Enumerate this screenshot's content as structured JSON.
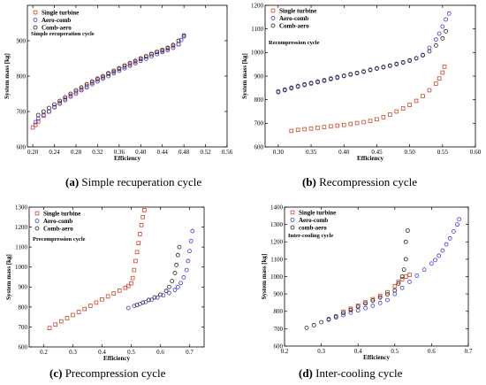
{
  "figure": {
    "captions": [
      {
        "letter": "(a)",
        "text": " Simple recuperation cycle"
      },
      {
        "letter": "(b)",
        "text": " Recompression cycle"
      },
      {
        "letter": "(c)",
        "text": " Precompression cycle"
      },
      {
        "letter": "(d)",
        "text": " Inter-cooling cycle"
      }
    ]
  },
  "series_styles": {
    "Single turbine": {
      "color": "#d0442c",
      "marker": "square"
    },
    "Aero-comb": {
      "color": "#3a3ad6",
      "marker": "circle"
    },
    "Comb-aero": {
      "color": "#222222",
      "marker": "circle"
    },
    "comb-aero": {
      "color": "#222222",
      "marker": "circle"
    }
  },
  "chart_data": [
    {
      "type": "scatter",
      "annotation": "Simple recuperation cycle",
      "xlabel": "Efficiency",
      "ylabel": "System mass [kg]",
      "xlim": [
        0.19,
        0.56
      ],
      "ylim": [
        600,
        1000
      ],
      "xticks": [
        0.2,
        0.24,
        0.28,
        0.32,
        0.36,
        0.4,
        0.44,
        0.48,
        0.52,
        0.56
      ],
      "xtick_labels": [
        "0.20",
        "0.24",
        "0.28",
        "0.32",
        "0.36",
        "0.40",
        "0.44",
        "0.48",
        "0.52",
        "0.56"
      ],
      "yticks": [
        600,
        700,
        800,
        900
      ],
      "legend": [
        "Single turbine",
        "Aero-comb",
        "Comb-aero"
      ],
      "series": [
        {
          "name": "Single turbine",
          "x": [
            0.2,
            0.205,
            0.21,
            0.22,
            0.23,
            0.24,
            0.25,
            0.26,
            0.27,
            0.28,
            0.29,
            0.3,
            0.31,
            0.32,
            0.33,
            0.34,
            0.35,
            0.36,
            0.37,
            0.38,
            0.39,
            0.4,
            0.41,
            0.42,
            0.43,
            0.44,
            0.45,
            0.46,
            0.47
          ],
          "y": [
            655,
            662,
            672,
            688,
            700,
            713,
            725,
            735,
            745,
            755,
            763,
            772,
            781,
            790,
            797,
            806,
            812,
            820,
            826,
            833,
            840,
            848,
            855,
            862,
            868,
            872,
            878,
            885,
            890
          ]
        },
        {
          "name": "Aero-comb",
          "x": [
            0.205,
            0.21,
            0.22,
            0.23,
            0.24,
            0.25,
            0.26,
            0.27,
            0.28,
            0.29,
            0.3,
            0.31,
            0.32,
            0.33,
            0.34,
            0.35,
            0.36,
            0.37,
            0.38,
            0.39,
            0.4,
            0.41,
            0.42,
            0.43,
            0.44,
            0.45,
            0.46,
            0.47,
            0.475,
            0.48
          ],
          "y": [
            670,
            680,
            690,
            700,
            712,
            722,
            732,
            742,
            750,
            760,
            768,
            777,
            785,
            793,
            800,
            808,
            815,
            822,
            829,
            836,
            843,
            849,
            856,
            862,
            868,
            873,
            880,
            890,
            902,
            912
          ]
        },
        {
          "name": "Comb-aero",
          "x": [
            0.21,
            0.22,
            0.23,
            0.24,
            0.25,
            0.26,
            0.27,
            0.28,
            0.29,
            0.3,
            0.31,
            0.32,
            0.33,
            0.34,
            0.35,
            0.36,
            0.37,
            0.38,
            0.39,
            0.4,
            0.41,
            0.42,
            0.43,
            0.44,
            0.45,
            0.46,
            0.47,
            0.48
          ],
          "y": [
            690,
            700,
            710,
            720,
            730,
            740,
            750,
            760,
            768,
            777,
            785,
            793,
            800,
            808,
            815,
            822,
            830,
            837,
            843,
            850,
            856,
            862,
            868,
            874,
            880,
            888,
            900,
            915
          ]
        }
      ]
    },
    {
      "type": "scatter",
      "annotation": "Recompression cycle",
      "xlabel": "Efficiency",
      "ylabel": "System mass [kg]",
      "xlim": [
        0.28,
        0.6
      ],
      "ylim": [
        600,
        1200
      ],
      "xticks": [
        0.3,
        0.35,
        0.4,
        0.45,
        0.5,
        0.55,
        0.6
      ],
      "xtick_labels": [
        "0.30",
        "0.35",
        "0.40",
        "0.45",
        "0.50",
        "0.55",
        "0.60"
      ],
      "yticks": [
        600,
        700,
        800,
        900,
        1000,
        1100,
        1200
      ],
      "legend": [
        "Single turbine",
        "Aero-comb",
        "Comb-aero"
      ],
      "series": [
        {
          "name": "Single turbine",
          "x": [
            0.32,
            0.33,
            0.34,
            0.35,
            0.36,
            0.37,
            0.38,
            0.39,
            0.4,
            0.41,
            0.42,
            0.43,
            0.44,
            0.45,
            0.46,
            0.47,
            0.48,
            0.49,
            0.5,
            0.51,
            0.52,
            0.53,
            0.54,
            0.545,
            0.55,
            0.553
          ],
          "y": [
            668,
            672,
            675,
            678,
            681,
            684,
            687,
            690,
            693,
            697,
            701,
            705,
            710,
            717,
            726,
            737,
            750,
            763,
            778,
            795,
            815,
            840,
            868,
            890,
            915,
            940
          ]
        },
        {
          "name": "Aero-comb",
          "x": [
            0.3,
            0.31,
            0.32,
            0.33,
            0.34,
            0.35,
            0.36,
            0.37,
            0.38,
            0.39,
            0.4,
            0.41,
            0.42,
            0.43,
            0.44,
            0.45,
            0.46,
            0.47,
            0.48,
            0.49,
            0.5,
            0.51,
            0.52,
            0.53,
            0.54,
            0.545,
            0.55,
            0.555,
            0.56
          ],
          "y": [
            832,
            840,
            848,
            855,
            862,
            868,
            874,
            880,
            887,
            893,
            900,
            906,
            912,
            918,
            925,
            931,
            937,
            943,
            950,
            957,
            965,
            975,
            990,
            1020,
            1055,
            1080,
            1110,
            1140,
            1165
          ]
        },
        {
          "name": "Comb-aero",
          "x": [
            0.3,
            0.31,
            0.32,
            0.33,
            0.34,
            0.35,
            0.36,
            0.37,
            0.38,
            0.39,
            0.4,
            0.41,
            0.42,
            0.43,
            0.44,
            0.45,
            0.46,
            0.47,
            0.48,
            0.49,
            0.5,
            0.51,
            0.52,
            0.53,
            0.54,
            0.55,
            0.555
          ],
          "y": [
            835,
            843,
            851,
            858,
            865,
            871,
            877,
            883,
            890,
            896,
            902,
            908,
            914,
            920,
            927,
            933,
            939,
            945,
            952,
            959,
            967,
            976,
            988,
            1005,
            1030,
            1060,
            1090
          ]
        }
      ]
    },
    {
      "type": "scatter",
      "annotation": "Precompression cycle",
      "xlabel": "Efficiency",
      "ylabel": "System mass [kg]",
      "xlim": [
        0.15,
        0.75
      ],
      "ylim": [
        600,
        1300
      ],
      "xticks": [
        0.2,
        0.3,
        0.4,
        0.5,
        0.6,
        0.7
      ],
      "xtick_labels": [
        "0.2",
        "0.3",
        "0.4",
        "0.5",
        "0.6",
        "0.7"
      ],
      "yticks": [
        600,
        700,
        800,
        900,
        1000,
        1100,
        1200,
        1300
      ],
      "legend": [
        "Single turbine",
        "Aero-comb",
        "Comb-aero"
      ],
      "series": [
        {
          "name": "Single turbine",
          "x": [
            0.22,
            0.24,
            0.26,
            0.28,
            0.3,
            0.32,
            0.34,
            0.36,
            0.38,
            0.4,
            0.42,
            0.44,
            0.46,
            0.48,
            0.49,
            0.5,
            0.505,
            0.51,
            0.515,
            0.52,
            0.525,
            0.53,
            0.535,
            0.54,
            0.545
          ],
          "y": [
            695,
            712,
            728,
            744,
            760,
            775,
            790,
            806,
            822,
            838,
            853,
            868,
            882,
            896,
            905,
            918,
            945,
            985,
            1030,
            1075,
            1120,
            1165,
            1210,
            1250,
            1285
          ]
        },
        {
          "name": "Aero-comb",
          "x": [
            0.49,
            0.51,
            0.53,
            0.55,
            0.57,
            0.59,
            0.61,
            0.63,
            0.65,
            0.66,
            0.67,
            0.68,
            0.69,
            0.695,
            0.7,
            0.705,
            0.71
          ],
          "y": [
            795,
            805,
            815,
            825,
            836,
            847,
            858,
            870,
            885,
            900,
            920,
            948,
            985,
            1030,
            1080,
            1130,
            1180
          ]
        },
        {
          "name": "Comb-aero",
          "x": [
            0.52,
            0.54,
            0.56,
            0.58,
            0.6,
            0.62,
            0.63,
            0.64,
            0.65,
            0.655,
            0.66,
            0.665
          ],
          "y": [
            810,
            822,
            835,
            848,
            862,
            880,
            900,
            930,
            970,
            1010,
            1060,
            1100
          ]
        }
      ]
    },
    {
      "type": "scatter",
      "annotation": "Inter-cooling cycle",
      "xlabel": "Efficiency",
      "ylabel": "System mass [kg]",
      "xlim": [
        0.2,
        0.7
      ],
      "ylim": [
        600,
        1400
      ],
      "xticks": [
        0.2,
        0.3,
        0.4,
        0.5,
        0.6,
        0.7
      ],
      "xtick_labels": [
        "0.2",
        "0.3",
        "0.4",
        "0.5",
        "0.6",
        "0.7"
      ],
      "yticks": [
        600,
        700,
        800,
        900,
        1000,
        1100,
        1200,
        1300,
        1400
      ],
      "legend": [
        "Single turbine",
        "Aero-comb",
        "comb-aero"
      ],
      "series": [
        {
          "name": "Single turbine",
          "x": [
            0.36,
            0.38,
            0.4,
            0.42,
            0.44,
            0.46,
            0.48,
            0.5,
            0.51,
            0.52,
            0.53,
            0.54
          ],
          "y": [
            798,
            815,
            833,
            852,
            870,
            890,
            910,
            945,
            970,
            985,
            1000,
            1010
          ]
        },
        {
          "name": "Aero-comb",
          "x": [
            0.32,
            0.34,
            0.36,
            0.38,
            0.4,
            0.42,
            0.44,
            0.46,
            0.48,
            0.5,
            0.52,
            0.54,
            0.56,
            0.58,
            0.6,
            0.61,
            0.62,
            0.63,
            0.64,
            0.65,
            0.66,
            0.67,
            0.675
          ],
          "y": [
            752,
            765,
            778,
            792,
            805,
            818,
            832,
            848,
            865,
            900,
            935,
            970,
            1005,
            1040,
            1075,
            1095,
            1120,
            1150,
            1185,
            1220,
            1260,
            1300,
            1330
          ]
        },
        {
          "name": "comb-aero",
          "x": [
            0.26,
            0.28,
            0.3,
            0.32,
            0.34,
            0.36,
            0.38,
            0.4,
            0.42,
            0.44,
            0.46,
            0.48,
            0.5,
            0.51,
            0.52,
            0.525,
            0.53,
            0.53,
            0.535
          ],
          "y": [
            705,
            720,
            737,
            755,
            772,
            790,
            808,
            826,
            845,
            862,
            880,
            898,
            920,
            960,
            1000,
            1040,
            1100,
            1200,
            1265
          ]
        }
      ]
    }
  ]
}
